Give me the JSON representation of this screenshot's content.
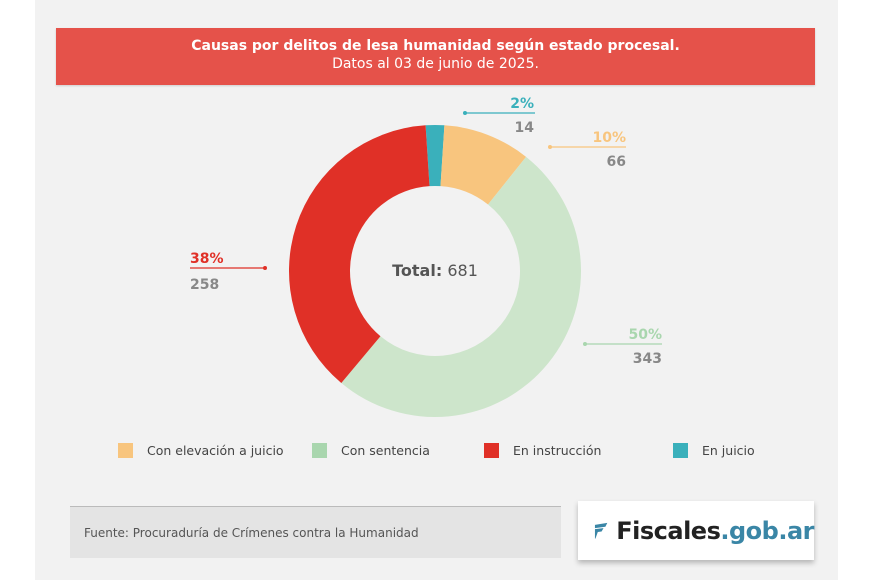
{
  "header": {
    "title": "Causas por delitos de lesa humanidad según estado procesal.",
    "subtitle": "Datos al 03 de junio de 2025."
  },
  "chart_data": {
    "type": "pie",
    "donut": true,
    "title": "Causas por delitos de lesa humanidad según estado procesal.",
    "subtitle": "Datos al 03 de junio de 2025.",
    "center_label": "Total:",
    "center_value": "681",
    "slices": [
      {
        "name": "En juicio",
        "value": 14,
        "percent": "2%",
        "color": "#3ab0bb"
      },
      {
        "name": "Con elevación a juicio",
        "value": 66,
        "percent": "10%",
        "color": "#f8c57e"
      },
      {
        "name": "Con sentencia",
        "value": 343,
        "percent": "50%",
        "color": "#cde5cb"
      },
      {
        "name": "En instrucción",
        "value": 258,
        "percent": "38%",
        "color": "#e03027"
      }
    ],
    "legend_position": "bottom"
  },
  "legend": [
    {
      "label": "Con elevación a juicio",
      "color": "#f8c57e"
    },
    {
      "label": "Con sentencia",
      "color": "#a9d6ae"
    },
    {
      "label": "En instrucción",
      "color": "#e03027"
    },
    {
      "label": "En juicio",
      "color": "#3ab0bb"
    }
  ],
  "footer": {
    "source": "Fuente: Procuraduría de Crímenes contra la Humanidad",
    "logo_main": "Fiscales",
    "logo_suffix": ".gob.ar"
  }
}
